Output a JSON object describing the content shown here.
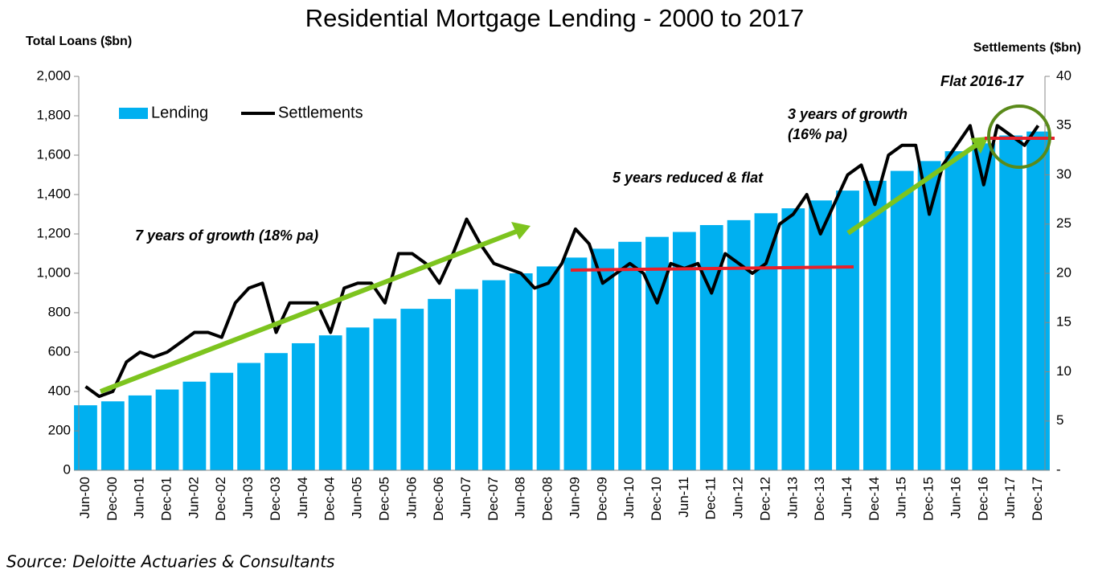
{
  "chart_data": {
    "type": "bar-line",
    "title": "Residential Mortgage Lending - 2000 to 2017",
    "y_label": "Total Loans ($bn)",
    "y2_label": "Settlements ($bn)",
    "source": "Source: Deloitte Actuaries & Consultants",
    "annotations": [
      "7 years of growth (18% pa)",
      "5 years reduced & flat",
      "3 years of growth",
      "(16% pa)",
      "Flat 2016-17"
    ],
    "categories": [
      "Jun-00",
      null,
      "Dec-00",
      null,
      "Jun-01",
      null,
      "Dec-01",
      null,
      "Jun-02",
      null,
      "Dec-02",
      null,
      "Jun-03",
      null,
      "Dec-03",
      null,
      "Jun-04",
      null,
      "Dec-04",
      null,
      "Jun-05",
      null,
      "Dec-05",
      null,
      "Jun-06",
      null,
      "Dec-06",
      null,
      "Jun-07",
      null,
      "Dec-07",
      null,
      "Jun-08",
      null,
      "Dec-08",
      null,
      "Jun-09",
      null,
      "Dec-09",
      null,
      "Jun-10",
      null,
      "Dec-10",
      null,
      "Jun-11",
      null,
      "Dec-11",
      null,
      "Jun-12",
      null,
      "Dec-12",
      null,
      "Jun-13",
      null,
      "Dec-13",
      null,
      "Jun-14",
      null,
      "Dec-14",
      null,
      "Jun-15",
      null,
      "Dec-15",
      null,
      "Jun-16",
      null,
      "Dec-16",
      null,
      "Jun-17",
      null,
      "Dec-17"
    ],
    "series": [
      {
        "name": "Lending",
        "color": "#00b0f0",
        "type": "bar",
        "values": [
          330,
          null,
          350,
          null,
          380,
          null,
          410,
          null,
          450,
          null,
          495,
          null,
          545,
          null,
          595,
          null,
          645,
          null,
          685,
          null,
          725,
          null,
          770,
          null,
          820,
          null,
          870,
          null,
          920,
          null,
          965,
          null,
          1000,
          null,
          1035,
          null,
          1080,
          null,
          1125,
          null,
          1160,
          null,
          1185,
          null,
          1210,
          null,
          1245,
          null,
          1270,
          null,
          1305,
          null,
          1330,
          null,
          1370,
          null,
          1420,
          null,
          1470,
          null,
          1520,
          null,
          1570,
          null,
          1620,
          null,
          1660,
          null,
          1700,
          null,
          1720
        ]
      },
      {
        "name": "Settlements",
        "color": "#000000",
        "type": "line",
        "axis": "y2",
        "values": [
          8.5,
          7.5,
          8,
          11,
          12,
          11.5,
          12,
          13,
          14,
          14,
          13.5,
          17,
          18.5,
          19,
          14,
          17,
          17,
          17,
          14,
          18.5,
          19,
          19,
          17,
          22,
          22,
          21,
          19,
          22,
          25.5,
          23,
          21,
          20.5,
          20,
          18.5,
          19,
          21,
          24.5,
          23,
          19,
          20,
          21,
          20,
          17,
          21,
          20.5,
          21,
          18,
          22,
          21,
          20,
          21,
          25,
          26,
          28,
          24,
          27,
          30,
          31,
          27,
          32,
          33,
          33,
          26,
          31,
          33,
          35,
          29,
          35,
          34,
          33,
          35
        ]
      }
    ],
    "ylim": [
      0,
      2000
    ],
    "yticks": [
      0,
      200,
      400,
      600,
      800,
      {
        "value": 1000,
        "label": "1,000"
      },
      {
        "value": 1200,
        "label": "1,200"
      },
      {
        "value": 1400,
        "label": "1,400"
      },
      {
        "value": 1600,
        "label": "1,600"
      },
      {
        "value": 1800,
        "label": "1,800"
      },
      {
        "value": 2000,
        "label": "2,000"
      }
    ],
    "y2lim": [
      0,
      40
    ],
    "y2ticks": [
      {
        "value": 0,
        "label": "-"
      },
      5,
      10,
      15,
      20,
      25,
      30,
      35,
      40
    ],
    "legend": "top-left",
    "grid": false
  }
}
